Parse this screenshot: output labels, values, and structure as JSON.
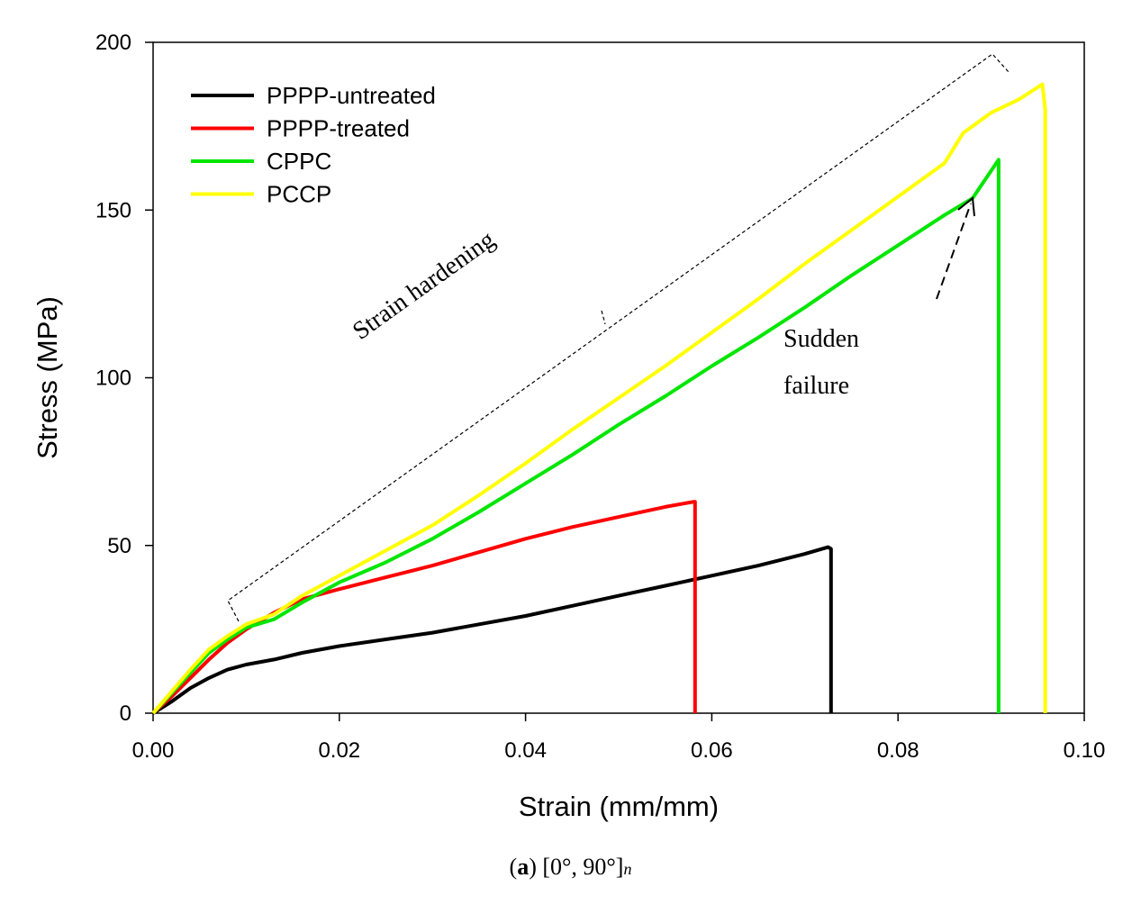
{
  "chart_data": {
    "type": "line",
    "title": "",
    "xlabel": "Strain (mm/mm)",
    "ylabel": "Stress (MPa)",
    "xlim": [
      0,
      0.1
    ],
    "ylim": [
      0,
      200
    ],
    "x_ticks": [
      0.0,
      0.02,
      0.04,
      0.06,
      0.08,
      0.1
    ],
    "x_tick_labels": [
      "0.00",
      "0.02",
      "0.04",
      "0.06",
      "0.08",
      "0.10"
    ],
    "y_ticks": [
      0,
      50,
      100,
      150,
      200
    ],
    "y_tick_labels": [
      "0",
      "50",
      "100",
      "150",
      "200"
    ],
    "grid": false,
    "legend_position": "top-left",
    "series": [
      {
        "name": "PPPP-untreated",
        "color": "#000000",
        "points": [
          [
            0,
            0
          ],
          [
            0.002,
            3.5
          ],
          [
            0.004,
            7.5
          ],
          [
            0.006,
            10.5
          ],
          [
            0.008,
            13
          ],
          [
            0.01,
            14.5
          ],
          [
            0.013,
            16
          ],
          [
            0.016,
            18
          ],
          [
            0.02,
            20
          ],
          [
            0.025,
            22
          ],
          [
            0.03,
            24
          ],
          [
            0.035,
            26.5
          ],
          [
            0.04,
            29
          ],
          [
            0.045,
            32
          ],
          [
            0.05,
            35
          ],
          [
            0.055,
            38
          ],
          [
            0.06,
            41
          ],
          [
            0.065,
            44
          ],
          [
            0.07,
            47.5
          ],
          [
            0.0725,
            49.5
          ],
          [
            0.0728,
            49
          ],
          [
            0.0728,
            0
          ]
        ]
      },
      {
        "name": "PPPP-treated",
        "color": "#ff0000",
        "points": [
          [
            0,
            0
          ],
          [
            0.002,
            5
          ],
          [
            0.004,
            10.5
          ],
          [
            0.006,
            16
          ],
          [
            0.008,
            21
          ],
          [
            0.01,
            25
          ],
          [
            0.013,
            30
          ],
          [
            0.016,
            34
          ],
          [
            0.02,
            37
          ],
          [
            0.025,
            40.5
          ],
          [
            0.03,
            44
          ],
          [
            0.035,
            48
          ],
          [
            0.04,
            52
          ],
          [
            0.045,
            55.5
          ],
          [
            0.05,
            58.5
          ],
          [
            0.055,
            61.5
          ],
          [
            0.058,
            63
          ],
          [
            0.0582,
            63
          ],
          [
            0.0582,
            0
          ]
        ]
      },
      {
        "name": "CPPC",
        "color": "#00e600",
        "points": [
          [
            0,
            0
          ],
          [
            0.002,
            6
          ],
          [
            0.004,
            12
          ],
          [
            0.006,
            18
          ],
          [
            0.008,
            22
          ],
          [
            0.01,
            25.5
          ],
          [
            0.013,
            28
          ],
          [
            0.016,
            33
          ],
          [
            0.02,
            39
          ],
          [
            0.025,
            45
          ],
          [
            0.03,
            52
          ],
          [
            0.035,
            60
          ],
          [
            0.04,
            68.5
          ],
          [
            0.045,
            77
          ],
          [
            0.05,
            86
          ],
          [
            0.055,
            94.5
          ],
          [
            0.06,
            103.5
          ],
          [
            0.065,
            112
          ],
          [
            0.07,
            121
          ],
          [
            0.075,
            130.5
          ],
          [
            0.08,
            139.5
          ],
          [
            0.085,
            148.5
          ],
          [
            0.088,
            153.5
          ],
          [
            0.0908,
            165
          ],
          [
            0.0908,
            0
          ]
        ]
      },
      {
        "name": "PCCP",
        "color": "#ffff00",
        "points": [
          [
            0,
            0
          ],
          [
            0.002,
            6.5
          ],
          [
            0.004,
            13
          ],
          [
            0.006,
            19
          ],
          [
            0.008,
            23
          ],
          [
            0.01,
            26.5
          ],
          [
            0.013,
            29.5
          ],
          [
            0.016,
            35
          ],
          [
            0.02,
            41
          ],
          [
            0.025,
            48.5
          ],
          [
            0.03,
            56
          ],
          [
            0.035,
            65
          ],
          [
            0.04,
            74.5
          ],
          [
            0.045,
            84.5
          ],
          [
            0.05,
            94
          ],
          [
            0.055,
            103.5
          ],
          [
            0.06,
            113.5
          ],
          [
            0.065,
            123.5
          ],
          [
            0.07,
            134
          ],
          [
            0.075,
            144
          ],
          [
            0.08,
            154
          ],
          [
            0.085,
            164
          ],
          [
            0.087,
            173
          ],
          [
            0.09,
            179
          ],
          [
            0.093,
            183
          ],
          [
            0.0955,
            187.5
          ],
          [
            0.0958,
            180
          ],
          [
            0.0958,
            0
          ]
        ]
      }
    ],
    "annotations": {
      "strain_hardening": "Strain hardening",
      "sudden_failure_line1": "Sudden",
      "sudden_failure_line2": "failure"
    }
  },
  "caption": {
    "prefix": "(",
    "letter": "a",
    "suffix": ") [0°, 90°]",
    "subscript": "n"
  }
}
